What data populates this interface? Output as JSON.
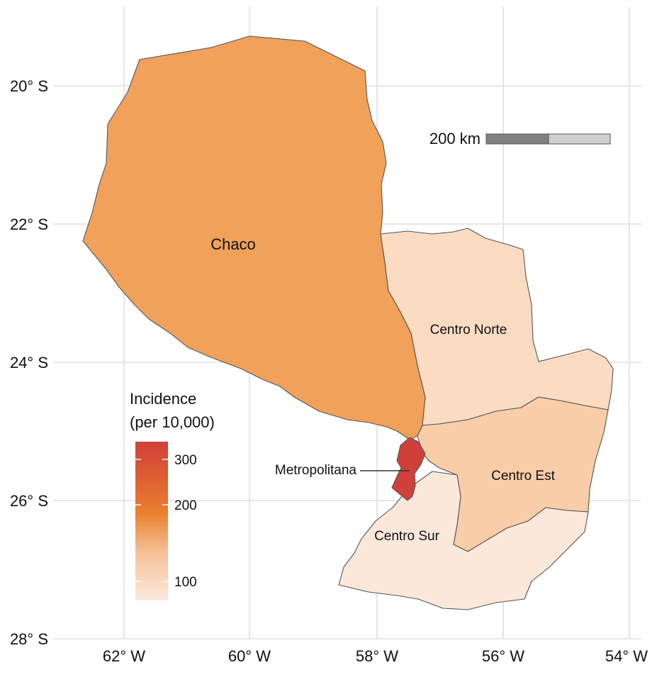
{
  "map": {
    "colors": {
      "chaco": "#f1a15a",
      "centro_norte": "#fbdcc3",
      "centro_est": "#f9cda8",
      "centro_sur": "#fce8da",
      "metropolitana": "#d0403a",
      "grid": "#e6e6e6",
      "border": "#555555"
    },
    "axes": {
      "x_ticks": [
        "62° W",
        "60° W",
        "58° W",
        "56° W",
        "54° W"
      ],
      "y_ticks": [
        "20° S",
        "22° S",
        "24° S",
        "26° S",
        "28° S"
      ]
    },
    "regions": {
      "chaco": "Chaco",
      "centro_norte": "Centro Norte",
      "centro_est": "Centro Est",
      "centro_sur": "Centro Sur",
      "metropolitana": "Metropolitana"
    },
    "scale_bar": {
      "label": "200 km"
    },
    "legend": {
      "title_line1": "Incidence",
      "title_line2": "(per 10,000)",
      "ticks": [
        "300",
        "200",
        "100"
      ],
      "gradient": [
        "#fbe9dc",
        "#f6c198",
        "#e8812e",
        "#dd5a33",
        "#d0403a"
      ]
    }
  }
}
